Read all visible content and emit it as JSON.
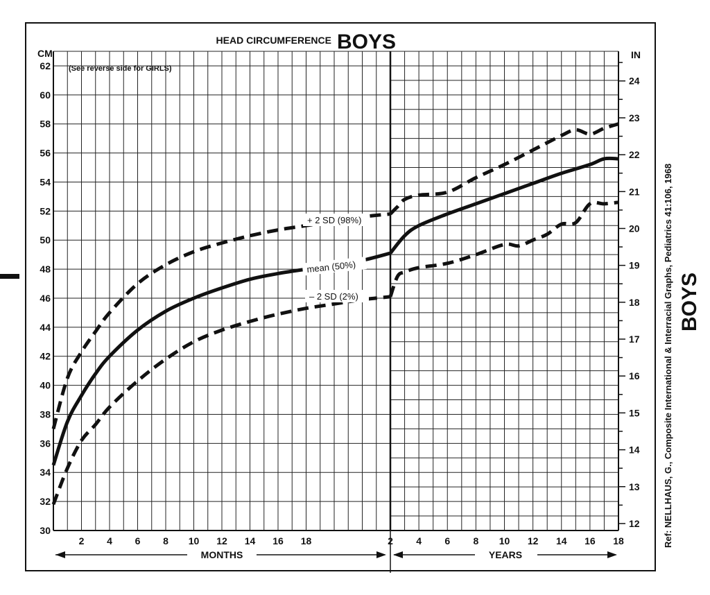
{
  "chart_data": {
    "type": "line",
    "title": "HEAD CIRCUMFERENCE",
    "subtitle": "BOYS",
    "note": "(See reverse side for GIRLS)",
    "left_unit": "CM",
    "right_unit": "IN",
    "side_title": "BOYS",
    "reference": "Ref: NELLHAUS, G., Composite International & Interracial Graphs, Pediatrics 41:106, 1968",
    "y_cm_range": [
      30,
      63
    ],
    "y_cm_ticks": [
      "30",
      "32",
      "34",
      "36",
      "38",
      "40",
      "42",
      "44",
      "46",
      "48",
      "50",
      "52",
      "54",
      "56",
      "58",
      "60",
      "62"
    ],
    "y_in_ticks": [
      "12",
      "13",
      "14",
      "15",
      "16",
      "17",
      "18",
      "19",
      "20",
      "21",
      "22",
      "23",
      "24"
    ],
    "months_axis": {
      "label": "MONTHS",
      "range": [
        0,
        24
      ],
      "ticks": [
        "2",
        "4",
        "6",
        "8",
        "10",
        "12",
        "14",
        "16",
        "18"
      ]
    },
    "years_axis": {
      "label": "YEARS",
      "range": [
        2,
        18
      ],
      "ticks": [
        "2",
        "4",
        "6",
        "8",
        "10",
        "12",
        "14",
        "16",
        "18"
      ]
    },
    "series": [
      {
        "name": "+ 2 SD (98%)",
        "style": "dashed",
        "months": [
          [
            0,
            37.0
          ],
          [
            1,
            40.5
          ],
          [
            2,
            42.3
          ],
          [
            3,
            43.7
          ],
          [
            4,
            45.0
          ],
          [
            6,
            47.0
          ],
          [
            8,
            48.3
          ],
          [
            10,
            49.2
          ],
          [
            12,
            49.8
          ],
          [
            14,
            50.3
          ],
          [
            16,
            50.7
          ],
          [
            18,
            51.0
          ],
          [
            20,
            51.3
          ],
          [
            22,
            51.6
          ],
          [
            24,
            51.8
          ]
        ],
        "years": [
          [
            2,
            51.8
          ],
          [
            2.5,
            52.3
          ],
          [
            3,
            52.8
          ],
          [
            4,
            53.1
          ],
          [
            6,
            53.3
          ],
          [
            8,
            54.3
          ],
          [
            10,
            55.2
          ],
          [
            12,
            56.2
          ],
          [
            14,
            57.2
          ],
          [
            15,
            57.6
          ],
          [
            16,
            57.3
          ],
          [
            17,
            57.7
          ],
          [
            18,
            58.0
          ]
        ]
      },
      {
        "name": "mean (50%)",
        "style": "solid",
        "months": [
          [
            0,
            34.5
          ],
          [
            1,
            37.5
          ],
          [
            2,
            39.3
          ],
          [
            3,
            40.8
          ],
          [
            4,
            42.0
          ],
          [
            6,
            43.8
          ],
          [
            8,
            45.1
          ],
          [
            10,
            46.0
          ],
          [
            12,
            46.7
          ],
          [
            14,
            47.3
          ],
          [
            16,
            47.7
          ],
          [
            18,
            48.0
          ],
          [
            20,
            48.3
          ],
          [
            22,
            48.6
          ],
          [
            24,
            49.1
          ]
        ],
        "years": [
          [
            2,
            49.1
          ],
          [
            3,
            50.3
          ],
          [
            4,
            51.0
          ],
          [
            6,
            51.8
          ],
          [
            8,
            52.5
          ],
          [
            10,
            53.2
          ],
          [
            12,
            53.9
          ],
          [
            14,
            54.6
          ],
          [
            16,
            55.2
          ],
          [
            17,
            55.6
          ],
          [
            18,
            55.6
          ]
        ]
      },
      {
        "name": "– 2 SD (2%)",
        "style": "dashed",
        "months": [
          [
            0,
            31.8
          ],
          [
            1,
            34.3
          ],
          [
            2,
            36.2
          ],
          [
            3,
            37.3
          ],
          [
            4,
            38.5
          ],
          [
            6,
            40.3
          ],
          [
            8,
            41.8
          ],
          [
            10,
            43.0
          ],
          [
            12,
            43.8
          ],
          [
            14,
            44.4
          ],
          [
            16,
            44.9
          ],
          [
            18,
            45.3
          ],
          [
            20,
            45.6
          ],
          [
            22,
            45.9
          ],
          [
            24,
            46.1
          ]
        ],
        "years": [
          [
            2,
            46.1
          ],
          [
            2.5,
            47.5
          ],
          [
            3,
            47.8
          ],
          [
            4,
            48.1
          ],
          [
            6,
            48.4
          ],
          [
            8,
            49.0
          ],
          [
            10,
            49.7
          ],
          [
            11,
            49.6
          ],
          [
            12,
            50.0
          ],
          [
            13,
            50.4
          ],
          [
            14,
            51.1
          ],
          [
            15,
            51.2
          ],
          [
            16,
            52.5
          ],
          [
            17,
            52.5
          ],
          [
            18,
            52.6
          ]
        ]
      }
    ],
    "grid": true
  }
}
